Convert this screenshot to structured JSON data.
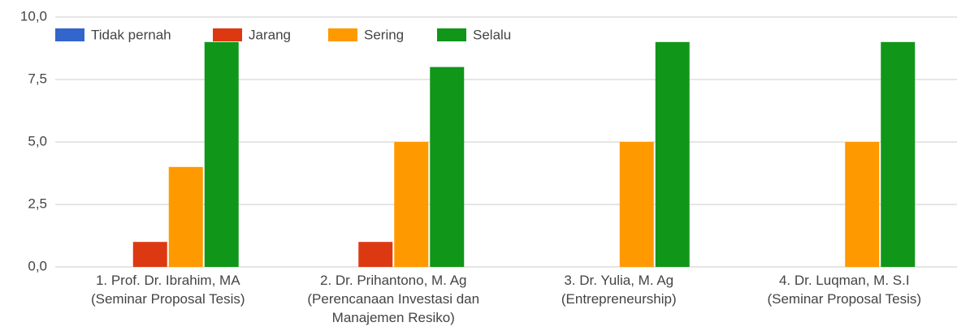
{
  "chart_data": {
    "type": "bar",
    "categories": [
      "1. Prof. Dr. Ibrahim, MA\n(Seminar Proposal Tesis)",
      "2. Dr. Prihantono, M. Ag\n(Perencanaan Investasi dan\nManajemen Resiko)",
      "3. Dr. Yulia, M. Ag\n(Entrepreneurship)",
      "4. Dr. Luqman, M. S.I\n(Seminar Proposal Tesis)"
    ],
    "series": [
      {
        "name": "Tidak pernah",
        "color": "#3366cc",
        "values": [
          0,
          0,
          0,
          0
        ]
      },
      {
        "name": "Jarang",
        "color": "#dc3912",
        "values": [
          1,
          1,
          0,
          0
        ]
      },
      {
        "name": "Sering",
        "color": "#ff9900",
        "values": [
          4,
          5,
          5,
          5
        ]
      },
      {
        "name": "Selalu",
        "color": "#109618",
        "values": [
          9,
          8,
          9,
          9
        ]
      }
    ],
    "ylim": [
      0,
      10
    ],
    "yticks": [
      {
        "value": 0,
        "label": "0,0"
      },
      {
        "value": 2.5,
        "label": "2,5"
      },
      {
        "value": 5,
        "label": "5,0"
      },
      {
        "value": 7.5,
        "label": "7,5"
      },
      {
        "value": 10,
        "label": "10,0"
      }
    ],
    "grid": true,
    "legend": "top"
  }
}
